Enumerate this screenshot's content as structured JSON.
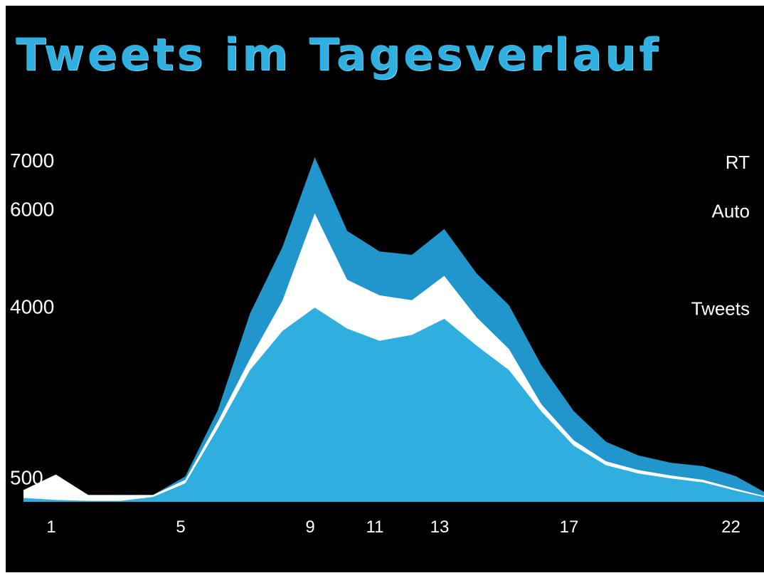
{
  "chart_data": {
    "type": "area",
    "title": "Tweets im Tagesverlauf",
    "stacked": true,
    "x": [
      0,
      1,
      2,
      3,
      4,
      5,
      6,
      7,
      8,
      9,
      10,
      11,
      12,
      13,
      14,
      15,
      16,
      17,
      18,
      19,
      20,
      21,
      22,
      23
    ],
    "x_tick_labels": [
      "1",
      "5",
      "9",
      "11",
      "13",
      "17",
      "22"
    ],
    "y_tick_labels": [
      "7000",
      "6000",
      "4000",
      "500"
    ],
    "series": [
      {
        "name": "Tweets",
        "color": "#2fafe0",
        "values": [
          80,
          40,
          20,
          20,
          100,
          380,
          1500,
          2700,
          3500,
          3980,
          3550,
          3300,
          3420,
          3750,
          3200,
          2700,
          1850,
          1150,
          750,
          580,
          480,
          400,
          230,
          80
        ]
      },
      {
        "name": "Auto",
        "color": "#ffffff",
        "values": [
          160,
          520,
          120,
          120,
          40,
          70,
          140,
          230,
          620,
          1930,
          1000,
          930,
          710,
          880,
          580,
          430,
          150,
          110,
          80,
          70,
          60,
          50,
          40,
          20
        ]
      },
      {
        "name": "RT",
        "color": "#2196cc",
        "values": [
          0,
          0,
          0,
          0,
          0,
          70,
          230,
          930,
          1100,
          1150,
          1000,
          900,
          930,
          960,
          900,
          900,
          800,
          600,
          400,
          300,
          260,
          280,
          260,
          60
        ]
      }
    ],
    "legend": [
      "RT",
      "Auto",
      "Tweets"
    ],
    "legend_placement": "right",
    "grid": false
  }
}
